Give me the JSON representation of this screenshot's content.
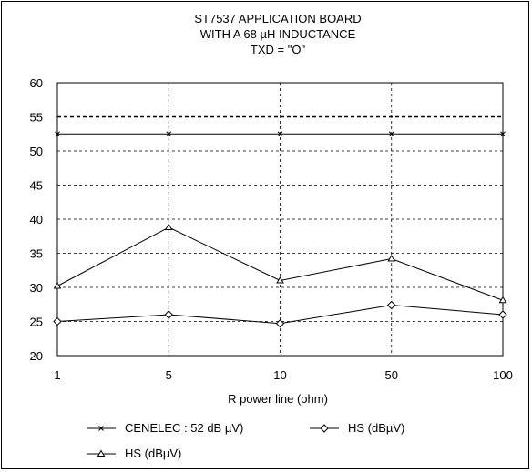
{
  "chart_data": {
    "type": "line",
    "title_lines": [
      "ST7537 APPLICATION BOARD",
      "WITH A 68 µH INDUCTANCE",
      "TXD = \"O\""
    ],
    "xlabel": "R power line (ohm)",
    "ylabel": "",
    "categories": [
      "1",
      "5",
      "10",
      "50",
      "100"
    ],
    "ylim": [
      20,
      60
    ],
    "yticks": [
      20,
      25,
      30,
      35,
      40,
      45,
      50,
      55,
      60
    ],
    "grid": true,
    "legend_position": "bottom",
    "reference_line": {
      "y": 55,
      "style": "dashed-bold"
    },
    "series": [
      {
        "name": "CENELEC : 52 dB  µV)",
        "marker": "x",
        "values": [
          52.5,
          52.5,
          52.5,
          52.5,
          52.5
        ]
      },
      {
        "name": "HS (dBµV)",
        "marker": "diamond",
        "values": [
          25,
          26,
          24.7,
          27.4,
          26
        ]
      },
      {
        "name": "HS (dBµV)",
        "marker": "triangle",
        "values": [
          30.2,
          38.8,
          31,
          34.2,
          28.1
        ]
      }
    ]
  }
}
